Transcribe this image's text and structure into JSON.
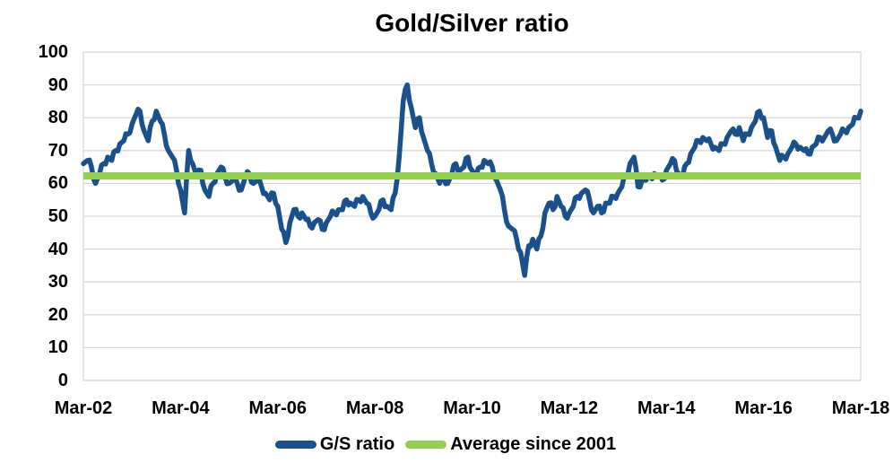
{
  "colors": {
    "series": "#1A508C",
    "average": "#92D050",
    "grid": "#D9D9D9",
    "text": "#000000",
    "background": "#FFFFFF"
  },
  "chart_data": {
    "type": "line",
    "title": "Gold/Silver ratio",
    "xlabel": "",
    "ylabel": "",
    "ylim": [
      0,
      100
    ],
    "y_ticks": [
      0,
      10,
      20,
      30,
      40,
      50,
      60,
      70,
      80,
      90,
      100
    ],
    "x_tick_labels": [
      "Mar-02",
      "Mar-04",
      "Mar-06",
      "Mar-08",
      "Mar-10",
      "Mar-12",
      "Mar-14",
      "Mar-16",
      "Mar-18"
    ],
    "grid": "horizontal",
    "legend_position": "bottom",
    "legend": [
      {
        "label": "G/S ratio",
        "color": "#1A508C"
      },
      {
        "label": "Average since 2001",
        "color": "#92D050"
      }
    ],
    "average_line": {
      "name": "Average since 2001",
      "value": 62.3
    },
    "series": [
      {
        "name": "G/S ratio",
        "start": "Mar-2002",
        "frequency": "monthly",
        "values": [
          66,
          67,
          65,
          60,
          63,
          66,
          68,
          67,
          70,
          72,
          73,
          75,
          78,
          81,
          82,
          76,
          73,
          79,
          82,
          79,
          75,
          70,
          68,
          64,
          58,
          51,
          70,
          66,
          62,
          64,
          58,
          56,
          60,
          63,
          65,
          62,
          60,
          61,
          60,
          58,
          62,
          63,
          60,
          61,
          59,
          57,
          55,
          57,
          53,
          46,
          42,
          48,
          52,
          50,
          51,
          49,
          47,
          48,
          49,
          46,
          48,
          50,
          51,
          52,
          52,
          55,
          54,
          53,
          55,
          56,
          54,
          51,
          50,
          52,
          55,
          53,
          52,
          57,
          68,
          85,
          90,
          83,
          77,
          80,
          74,
          70,
          66,
          63,
          60,
          62,
          60,
          63,
          66,
          64,
          65,
          68,
          64,
          62,
          65,
          67,
          66,
          65,
          61,
          58,
          52,
          47,
          46,
          43,
          39,
          32,
          41,
          43,
          40,
          44,
          51,
          54,
          52,
          56,
          53,
          50,
          51,
          53,
          56,
          57,
          58,
          55,
          51,
          53,
          51,
          54,
          54,
          56,
          57,
          59,
          62,
          66,
          68,
          59,
          61,
          61,
          62,
          63,
          62,
          61,
          64,
          66,
          67,
          63,
          62,
          66,
          69,
          71,
          73,
          74,
          73,
          72,
          71,
          70,
          72,
          74,
          76,
          75,
          77,
          73,
          75,
          77,
          79,
          82,
          80,
          74,
          76,
          71,
          67,
          68,
          69,
          71,
          72,
          71,
          70,
          69,
          71,
          72,
          74,
          74,
          76,
          75,
          73,
          75,
          76,
          77,
          78,
          80,
          82
        ]
      }
    ]
  }
}
